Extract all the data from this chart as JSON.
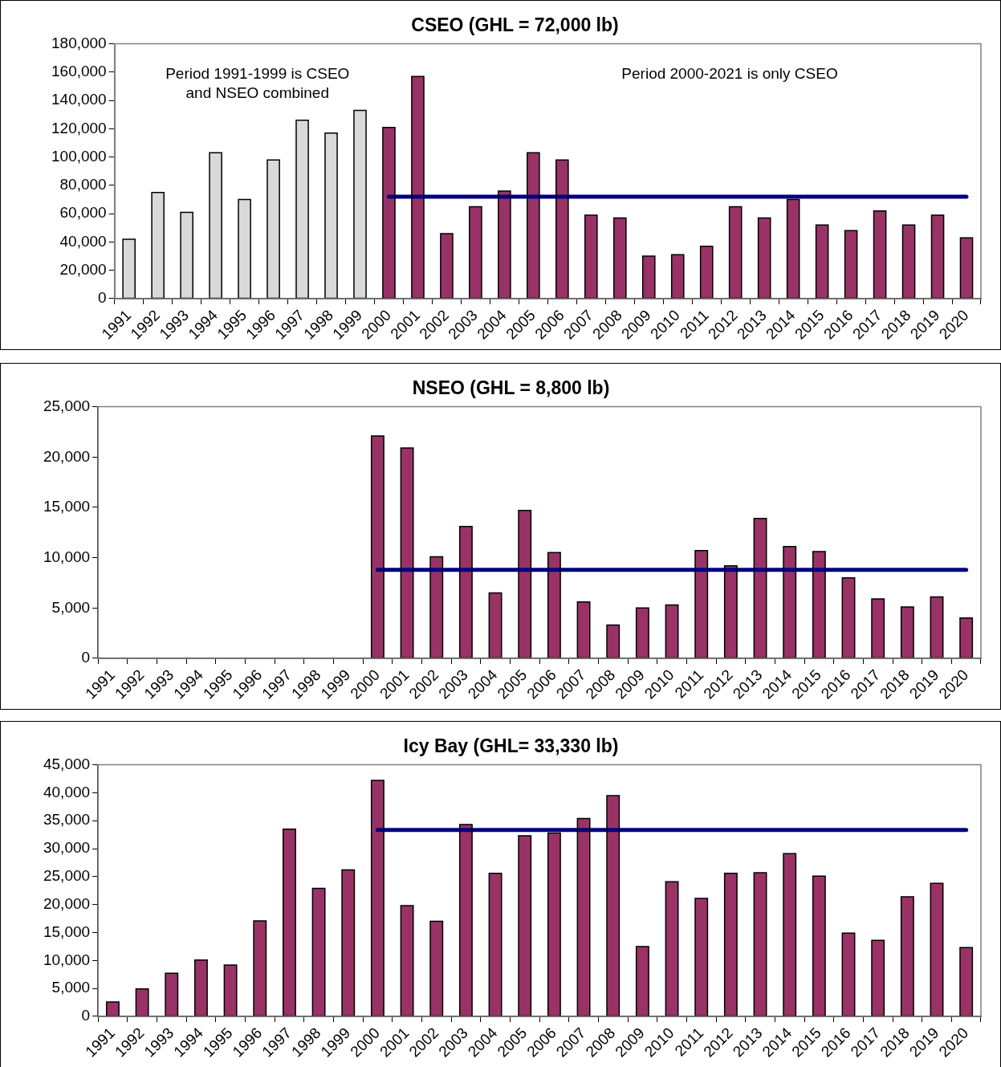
{
  "chart_data": [
    {
      "type": "bar",
      "title": "CSEO (GHL = 72,000 lb)",
      "categories": [
        "1991",
        "1992",
        "1993",
        "1994",
        "1995",
        "1996",
        "1997",
        "1998",
        "1999",
        "2000",
        "2001",
        "2002",
        "2003",
        "2004",
        "2005",
        "2006",
        "2007",
        "2008",
        "2009",
        "2010",
        "2011",
        "2012",
        "2013",
        "2014",
        "2015",
        "2016",
        "2017",
        "2018",
        "2019",
        "2020"
      ],
      "series": [
        {
          "colors": [
            "#d9d9d9",
            "#d9d9d9",
            "#d9d9d9",
            "#d9d9d9",
            "#d9d9d9",
            "#d9d9d9",
            "#d9d9d9",
            "#d9d9d9",
            "#d9d9d9",
            "#993366",
            "#993366",
            "#993366",
            "#993366",
            "#993366",
            "#993366",
            "#993366",
            "#993366",
            "#993366",
            "#993366",
            "#993366",
            "#993366",
            "#993366",
            "#993366",
            "#993366",
            "#993366",
            "#993366",
            "#993366",
            "#993366",
            "#993366",
            "#993366"
          ],
          "values": [
            42000,
            75000,
            61000,
            103000,
            70000,
            98000,
            126000,
            117000,
            133000,
            121000,
            157000,
            46000,
            65000,
            76000,
            103000,
            98000,
            59000,
            57000,
            30000,
            31000,
            37000,
            65000,
            57000,
            70000,
            52000,
            48000,
            62000,
            52000,
            59000,
            43000
          ]
        },
        {
          "type": "line",
          "color": "#000080",
          "values": [
            null,
            null,
            null,
            null,
            null,
            null,
            null,
            null,
            null,
            72000,
            72000,
            72000,
            72000,
            72000,
            72000,
            72000,
            72000,
            72000,
            72000,
            72000,
            72000,
            72000,
            72000,
            72000,
            72000,
            72000,
            72000,
            72000,
            72000,
            72000
          ]
        }
      ],
      "ylim": [
        0,
        180000
      ],
      "yticks": [
        {
          "value": 0,
          "label": "0"
        },
        {
          "value": 20000,
          "label": "20,000"
        },
        {
          "value": 40000,
          "label": "40,000"
        },
        {
          "value": 60000,
          "label": "60,000"
        },
        {
          "value": 80000,
          "label": "80,000"
        },
        {
          "value": 100000,
          "label": "100,000"
        },
        {
          "value": 120000,
          "label": "120,000"
        },
        {
          "value": 140000,
          "label": "140,000"
        },
        {
          "value": 160000,
          "label": "160,000"
        },
        {
          "value": 180000,
          "label": "180,000"
        }
      ],
      "grid": false,
      "legend": false,
      "marker": "none",
      "annotations": [
        "Period 1991-1999 is CSEO\nand NSEO combined",
        "Period 2000-2021 is only CSEO"
      ]
    },
    {
      "type": "bar",
      "title": "NSEO (GHL = 8,800 lb)",
      "categories": [
        "1991",
        "1992",
        "1993",
        "1994",
        "1995",
        "1996",
        "1997",
        "1998",
        "1999",
        "2000",
        "2001",
        "2002",
        "2003",
        "2004",
        "2005",
        "2006",
        "2007",
        "2008",
        "2009",
        "2010",
        "2011",
        "2012",
        "2013",
        "2014",
        "2015",
        "2016",
        "2017",
        "2018",
        "2019",
        "2020"
      ],
      "series": [
        {
          "color": "#993366",
          "values": [
            null,
            null,
            null,
            null,
            null,
            null,
            null,
            null,
            null,
            22100,
            20900,
            10100,
            13100,
            6500,
            14700,
            10500,
            5600,
            3300,
            5000,
            5300,
            10700,
            9200,
            13900,
            11100,
            10600,
            8000,
            5900,
            5100,
            6100,
            4000
          ]
        },
        {
          "type": "line",
          "color": "#000080",
          "values": [
            null,
            null,
            null,
            null,
            null,
            null,
            null,
            null,
            null,
            8800,
            8800,
            8800,
            8800,
            8800,
            8800,
            8800,
            8800,
            8800,
            8800,
            8800,
            8800,
            8800,
            8800,
            8800,
            8800,
            8800,
            8800,
            8800,
            8800,
            8800
          ]
        }
      ],
      "ylim": [
        0,
        25000
      ],
      "yticks": [
        {
          "value": 0,
          "label": "0"
        },
        {
          "value": 5000,
          "label": "5,000"
        },
        {
          "value": 10000,
          "label": "10,000"
        },
        {
          "value": 15000,
          "label": "15,000"
        },
        {
          "value": 20000,
          "label": "20,000"
        },
        {
          "value": 25000,
          "label": "25,000"
        }
      ],
      "grid": false,
      "legend": false,
      "marker": "none"
    },
    {
      "type": "bar",
      "title": "Icy Bay (GHL= 33,330 lb)",
      "categories": [
        "1991",
        "1992",
        "1993",
        "1994",
        "1995",
        "1996",
        "1997",
        "1998",
        "1999",
        "2000",
        "2001",
        "2002",
        "2003",
        "2004",
        "2005",
        "2006",
        "2007",
        "2008",
        "2009",
        "2010",
        "2011",
        "2012",
        "2013",
        "2014",
        "2015",
        "2016",
        "2017",
        "2018",
        "2019",
        "2020"
      ],
      "series": [
        {
          "color": "#993366",
          "values": [
            2600,
            4900,
            7700,
            10100,
            9200,
            17100,
            33500,
            22900,
            26200,
            42200,
            19800,
            17000,
            34300,
            25600,
            32300,
            32800,
            35400,
            39500,
            12500,
            24100,
            21100,
            25600,
            25700,
            29100,
            25100,
            14900,
            13600,
            21400,
            23800,
            12300
          ]
        },
        {
          "type": "line",
          "color": "#000080",
          "values": [
            null,
            null,
            null,
            null,
            null,
            null,
            null,
            null,
            null,
            33330,
            33330,
            33330,
            33330,
            33330,
            33330,
            33330,
            33330,
            33330,
            33330,
            33330,
            33330,
            33330,
            33330,
            33330,
            33330,
            33330,
            33330,
            33330,
            33330,
            33330
          ]
        }
      ],
      "ylim": [
        0,
        45000
      ],
      "yticks": [
        {
          "value": 0,
          "label": "0"
        },
        {
          "value": 5000,
          "label": "5,000"
        },
        {
          "value": 10000,
          "label": "10,000"
        },
        {
          "value": 15000,
          "label": "15,000"
        },
        {
          "value": 20000,
          "label": "20,000"
        },
        {
          "value": 25000,
          "label": "25,000"
        },
        {
          "value": 30000,
          "label": "30,000"
        },
        {
          "value": 35000,
          "label": "35,000"
        },
        {
          "value": 40000,
          "label": "40,000"
        },
        {
          "value": 45000,
          "label": "45,000"
        }
      ],
      "grid": false,
      "legend": false,
      "marker": "none"
    }
  ]
}
